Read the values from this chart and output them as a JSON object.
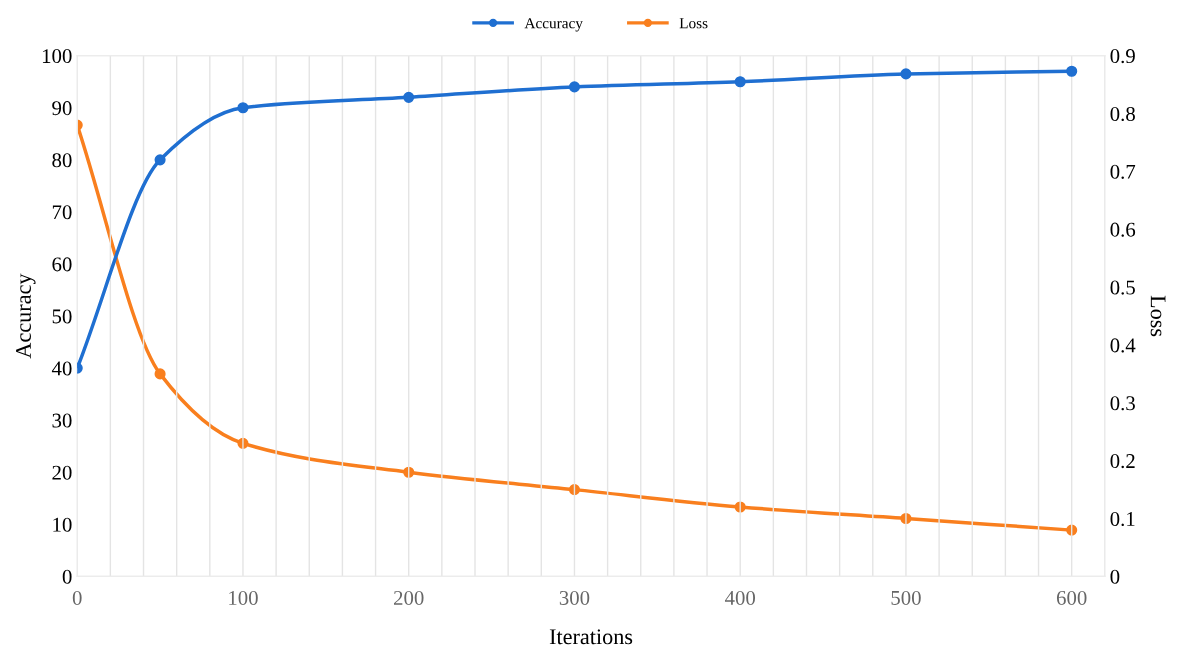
{
  "chart_data": {
    "type": "line",
    "xlabel": "Iterations",
    "ylabel": "Accuracy",
    "y2label": "Loss",
    "x": [
      0,
      50,
      100,
      200,
      300,
      400,
      500,
      600
    ],
    "series": [
      {
        "name": "Accuracy",
        "color": "#1f6fd1",
        "values": [
          40,
          80,
          90,
          92,
          94,
          95,
          96.5,
          97
        ]
      },
      {
        "name": "Loss",
        "color": "#f97f1e",
        "axis": "y2",
        "values": [
          0.78,
          0.35,
          0.23,
          0.18,
          0.15,
          0.12,
          0.1,
          0.08
        ]
      }
    ],
    "xlim": [
      0,
      620
    ],
    "xticks": [
      0,
      {
        "value": 20,
        "label": null
      },
      {
        "value": 40,
        "label": null
      },
      {
        "value": 60,
        "label": null
      },
      {
        "value": 80,
        "label": null
      },
      100,
      {
        "value": 120,
        "label": null
      },
      {
        "value": 140,
        "label": null
      },
      {
        "value": 160,
        "label": null
      },
      {
        "value": 180,
        "label": null
      },
      200,
      {
        "value": 220,
        "label": null
      },
      {
        "value": 240,
        "label": null
      },
      {
        "value": 260,
        "label": null
      },
      {
        "value": 280,
        "label": null
      },
      300,
      {
        "value": 320,
        "label": null
      },
      {
        "value": 340,
        "label": null
      },
      {
        "value": 360,
        "label": null
      },
      {
        "value": 380,
        "label": null
      },
      400,
      {
        "value": 420,
        "label": null
      },
      {
        "value": 440,
        "label": null
      },
      {
        "value": 460,
        "label": null
      },
      {
        "value": 480,
        "label": null
      },
      500,
      {
        "value": 520,
        "label": null
      },
      {
        "value": 540,
        "label": null
      },
      {
        "value": 560,
        "label": null
      },
      {
        "value": 580,
        "label": null
      },
      600,
      {
        "value": 620,
        "label": null
      }
    ],
    "ylim": [
      0,
      100
    ],
    "yticks": [
      0,
      10,
      20,
      30,
      40,
      50,
      60,
      70,
      80,
      90,
      100
    ],
    "y2lim": [
      0,
      0.9
    ],
    "y2ticks": [
      0,
      0.1,
      0.2,
      0.3,
      0.4,
      0.5,
      0.6,
      0.7,
      0.8,
      0.9
    ],
    "grid": "x",
    "legend": "top",
    "marker": "circle",
    "line_style": "solid"
  }
}
